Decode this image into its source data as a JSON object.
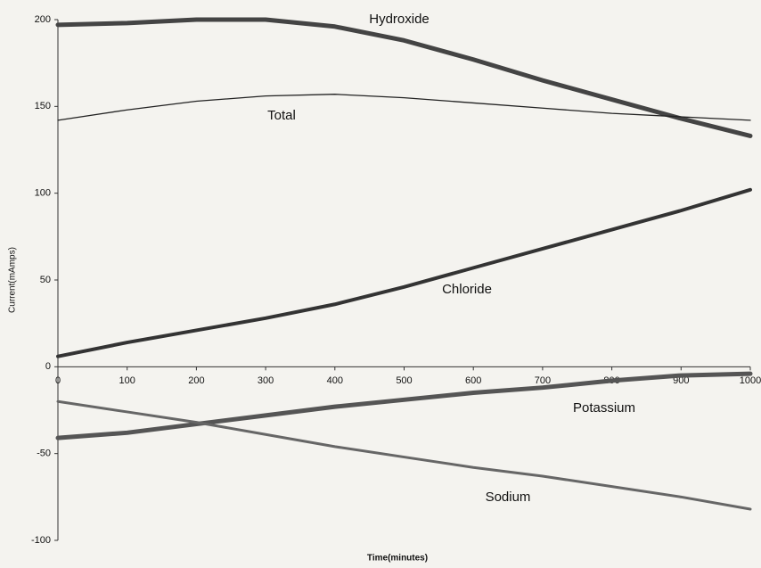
{
  "chart_data": {
    "type": "line",
    "x_label": "Time(minutes)",
    "y_label": "Current(mAmps)",
    "x": [
      0,
      100,
      200,
      300,
      400,
      500,
      600,
      700,
      800,
      900,
      1000
    ],
    "series": [
      {
        "name": "Hydroxide",
        "color": "#444444",
        "line_width": 5,
        "values": [
          197,
          198,
          200,
          200,
          196,
          188,
          177,
          165,
          154,
          143,
          133
        ]
      },
      {
        "name": "Total",
        "color": "#222222",
        "line_width": 1.3,
        "values": [
          142,
          148,
          153,
          156,
          157,
          155,
          152,
          149,
          146,
          144,
          142
        ]
      },
      {
        "name": "Chloride",
        "color": "#333333",
        "line_width": 4,
        "values": [
          6,
          14,
          21,
          28,
          36,
          46,
          57,
          68,
          79,
          90,
          102
        ]
      },
      {
        "name": "Potassium",
        "color": "#555555",
        "line_width": 5,
        "values": [
          -41,
          -38,
          -33,
          -28,
          -23,
          -19,
          -15,
          -12,
          -8,
          -5,
          -4
        ]
      },
      {
        "name": "Sodium",
        "color": "#666666",
        "line_width": 3,
        "values": [
          -20,
          -26,
          -32,
          -39,
          -46,
          -52,
          -58,
          -63,
          -69,
          -75,
          -82
        ]
      }
    ],
    "xlim": [
      0,
      1000
    ],
    "xticks": [
      0,
      100,
      200,
      300,
      400,
      500,
      600,
      700,
      800,
      900,
      1000
    ],
    "ylim": [
      -100,
      200
    ],
    "yticks": [
      -100,
      -50,
      0,
      50,
      100,
      150,
      200
    ],
    "grid": false
  }
}
